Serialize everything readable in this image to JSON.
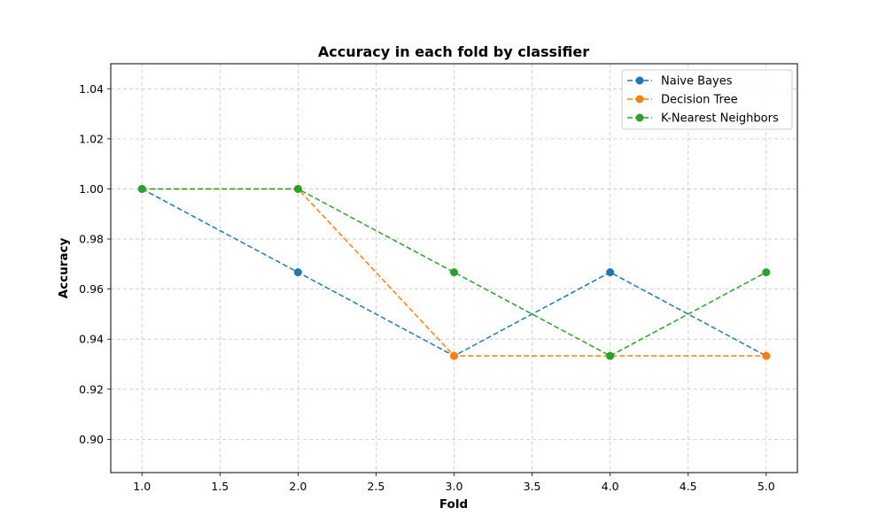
{
  "chart_data": {
    "type": "line",
    "title": "Accuracy in each fold by classifier",
    "xlabel": "Fold",
    "ylabel": "Accuracy",
    "x": [
      1,
      2,
      3,
      4,
      5
    ],
    "xlim": [
      0.8,
      5.2
    ],
    "ylim": [
      0.8867,
      1.05
    ],
    "xticks": [
      1.0,
      1.5,
      2.0,
      2.5,
      3.0,
      3.5,
      4.0,
      4.5,
      5.0
    ],
    "xtick_labels": [
      "1.0",
      "1.5",
      "2.0",
      "2.5",
      "3.0",
      "3.5",
      "4.0",
      "4.5",
      "5.0"
    ],
    "yticks": [
      0.9,
      0.92,
      0.94,
      0.96,
      0.98,
      1.0,
      1.02,
      1.04
    ],
    "ytick_labels": [
      "0.90",
      "0.92",
      "0.94",
      "0.96",
      "0.98",
      "1.00",
      "1.02",
      "1.04"
    ],
    "grid": true,
    "grid_style": "dashed",
    "line_style": "dashed",
    "marker": "circle",
    "legend_position": "top-right",
    "series": [
      {
        "name": "Naive Bayes",
        "color": "#1f77b4",
        "values": [
          1.0,
          0.9667,
          0.9333,
          0.9667,
          0.9333
        ]
      },
      {
        "name": "Decision Tree",
        "color": "#ff7f0e",
        "values": [
          1.0,
          1.0,
          0.9333,
          0.9333,
          0.9333
        ]
      },
      {
        "name": "K-Nearest Neighbors",
        "color": "#2ca02c",
        "values": [
          1.0,
          1.0,
          0.9667,
          0.9333,
          0.9667
        ]
      }
    ]
  }
}
